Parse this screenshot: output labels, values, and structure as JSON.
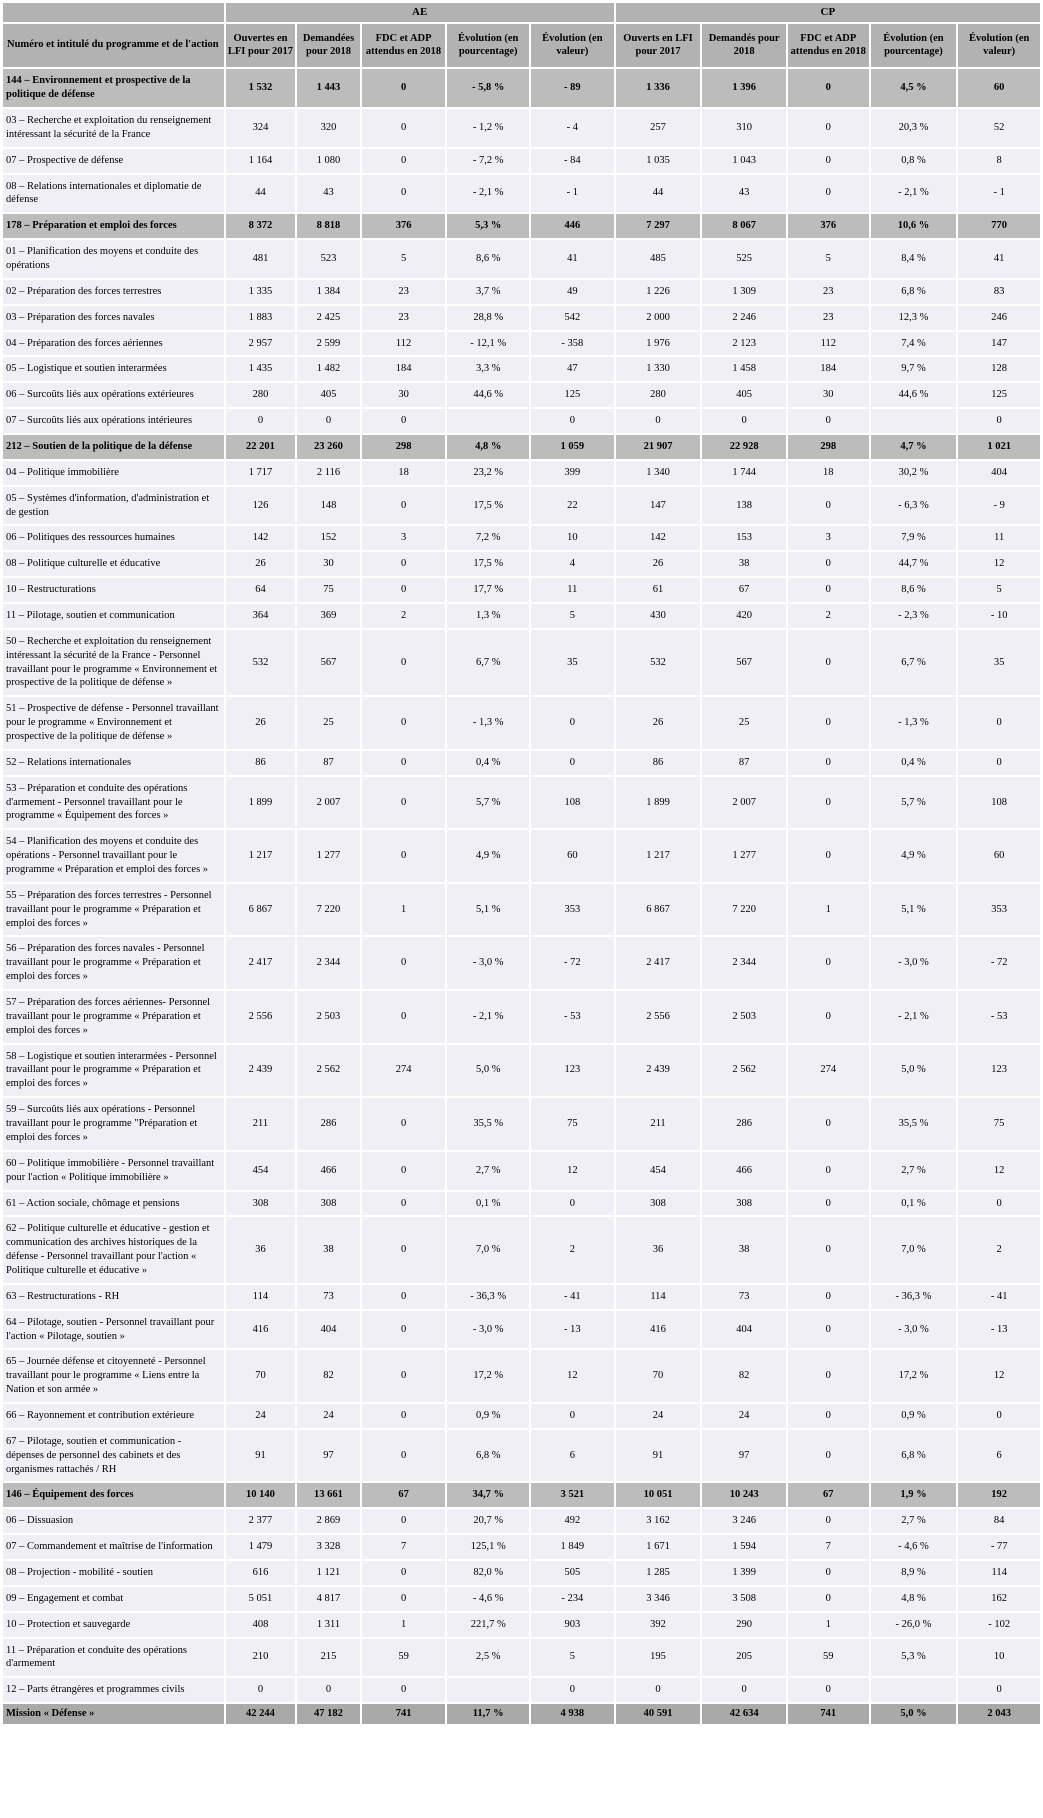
{
  "table": {
    "group_headers": {
      "ae": "AE",
      "cp": "CP"
    },
    "label_header": "Numéro et intitulé du programme et de l'action",
    "ae_columns": [
      "Ouvertes en LFI pour 2017",
      "Demandées pour 2018",
      "FDC et ADP attendus en 2018",
      "Évolution (en pourcentage)",
      "Évolution (en valeur)"
    ],
    "cp_columns": [
      "Ouverts en LFI pour 2017",
      "Demandés pour 2018",
      "FDC et ADP attendus en 2018",
      "Évolution (en pourcentage)",
      "Évolution (en valeur)"
    ],
    "colors": {
      "header_bg": "#b2b2b2",
      "program_row_bg": "#bcbcbc",
      "mission_row_bg": "#a9a9a9",
      "action_row_bg": "#f0eff5",
      "grid": "#ffffff",
      "text": "#000000"
    },
    "rows": [
      {
        "type": "program",
        "label": "144 – Environnement et prospective de la politique de défense",
        "values": [
          "1 532",
          "1 443",
          "0",
          "- 5,8 %",
          "- 89",
          "1 336",
          "1 396",
          "0",
          "4,5 %",
          "60"
        ]
      },
      {
        "type": "action",
        "label": "03 – Recherche et exploitation du renseignement intéressant la sécurité de la France",
        "values": [
          "324",
          "320",
          "0",
          "- 1,2 %",
          "- 4",
          "257",
          "310",
          "0",
          "20,3 %",
          "52"
        ]
      },
      {
        "type": "action",
        "label": "07 – Prospective de défense",
        "values": [
          "1 164",
          "1 080",
          "0",
          "- 7,2 %",
          "- 84",
          "1 035",
          "1 043",
          "0",
          "0,8 %",
          "8"
        ]
      },
      {
        "type": "action",
        "label": "08 – Relations internationales et diplomatie de défense",
        "values": [
          "44",
          "43",
          "0",
          "- 2,1 %",
          "- 1",
          "44",
          "43",
          "0",
          "- 2,1 %",
          "- 1"
        ]
      },
      {
        "type": "program",
        "label": "178 – Préparation et emploi des forces",
        "values": [
          "8 372",
          "8 818",
          "376",
          "5,3 %",
          "446",
          "7 297",
          "8 067",
          "376",
          "10,6 %",
          "770"
        ]
      },
      {
        "type": "action",
        "label": "01 – Planification des moyens et conduite des opérations",
        "values": [
          "481",
          "523",
          "5",
          "8,6 %",
          "41",
          "485",
          "525",
          "5",
          "8,4 %",
          "41"
        ]
      },
      {
        "type": "action",
        "label": "02 – Préparation des forces terrestres",
        "values": [
          "1 335",
          "1 384",
          "23",
          "3,7 %",
          "49",
          "1 226",
          "1 309",
          "23",
          "6,8 %",
          "83"
        ]
      },
      {
        "type": "action",
        "label": "03 – Préparation des forces navales",
        "values": [
          "1 883",
          "2 425",
          "23",
          "28,8 %",
          "542",
          "2 000",
          "2 246",
          "23",
          "12,3 %",
          "246"
        ]
      },
      {
        "type": "action",
        "label": "04 – Préparation des forces aériennes",
        "values": [
          "2 957",
          "2 599",
          "112",
          "- 12,1 %",
          "- 358",
          "1 976",
          "2 123",
          "112",
          "7,4 %",
          "147"
        ]
      },
      {
        "type": "action",
        "label": "05 – Logistique et soutien interarmées",
        "values": [
          "1 435",
          "1 482",
          "184",
          "3,3 %",
          "47",
          "1 330",
          "1 458",
          "184",
          "9,7 %",
          "128"
        ]
      },
      {
        "type": "action",
        "label": "06 – Surcoûts liés aux opérations extérieures",
        "values": [
          "280",
          "405",
          "30",
          "44,6 %",
          "125",
          "280",
          "405",
          "30",
          "44,6 %",
          "125"
        ]
      },
      {
        "type": "action",
        "label": "07 – Surcoûts liés aux opérations intérieures",
        "values": [
          "0",
          "0",
          "0",
          "",
          "0",
          "0",
          "0",
          "0",
          "",
          "0"
        ]
      },
      {
        "type": "program",
        "label": "212 – Soutien de la politique de la défense",
        "values": [
          "22 201",
          "23 260",
          "298",
          "4,8 %",
          "1 059",
          "21 907",
          "22 928",
          "298",
          "4,7 %",
          "1 021"
        ]
      },
      {
        "type": "action",
        "label": "04 – Politique immobilière",
        "values": [
          "1 717",
          "2 116",
          "18",
          "23,2 %",
          "399",
          "1 340",
          "1 744",
          "18",
          "30,2 %",
          "404"
        ]
      },
      {
        "type": "action",
        "label": "05 – Systèmes d'information, d'administration et de gestion",
        "values": [
          "126",
          "148",
          "0",
          "17,5 %",
          "22",
          "147",
          "138",
          "0",
          "- 6,3 %",
          "- 9"
        ]
      },
      {
        "type": "action",
        "label": "06 – Politiques des ressources humaines",
        "values": [
          "142",
          "152",
          "3",
          "7,2 %",
          "10",
          "142",
          "153",
          "3",
          "7,9 %",
          "11"
        ]
      },
      {
        "type": "action",
        "label": "08 – Politique culturelle et éducative",
        "values": [
          "26",
          "30",
          "0",
          "17,5 %",
          "4",
          "26",
          "38",
          "0",
          "44,7 %",
          "12"
        ]
      },
      {
        "type": "action",
        "label": "10 – Restructurations",
        "values": [
          "64",
          "75",
          "0",
          "17,7 %",
          "11",
          "61",
          "67",
          "0",
          "8,6 %",
          "5"
        ]
      },
      {
        "type": "action",
        "label": "11 – Pilotage, soutien et communication",
        "values": [
          "364",
          "369",
          "2",
          "1,3 %",
          "5",
          "430",
          "420",
          "2",
          "- 2,3 %",
          "- 10"
        ]
      },
      {
        "type": "action",
        "label": "50 – Recherche et exploitation du renseignement intéressant la sécurité de la France - Personnel travaillant pour le programme « Environnement et prospective de la politique de défense »",
        "values": [
          "532",
          "567",
          "0",
          "6,7 %",
          "35",
          "532",
          "567",
          "0",
          "6,7 %",
          "35"
        ]
      },
      {
        "type": "action",
        "label": "51 – Prospective de défense - Personnel travaillant pour le programme « Environnement et prospective de la politique de défense »",
        "values": [
          "26",
          "25",
          "0",
          "- 1,3 %",
          "0",
          "26",
          "25",
          "0",
          "- 1,3 %",
          "0"
        ]
      },
      {
        "type": "action",
        "label": "52 – Relations internationales",
        "values": [
          "86",
          "87",
          "0",
          "0,4 %",
          "0",
          "86",
          "87",
          "0",
          "0,4 %",
          "0"
        ]
      },
      {
        "type": "action",
        "label": "53 – Préparation et conduite des opérations d'armement - Personnel travaillant pour le programme « Équipement des forces »",
        "values": [
          "1 899",
          "2 007",
          "0",
          "5,7 %",
          "108",
          "1 899",
          "2 007",
          "0",
          "5,7 %",
          "108"
        ]
      },
      {
        "type": "action",
        "label": "54 – Planification des moyens et conduite des opérations - Personnel travaillant pour le programme « Préparation et emploi des forces »",
        "values": [
          "1 217",
          "1 277",
          "0",
          "4,9 %",
          "60",
          "1 217",
          "1 277",
          "0",
          "4,9 %",
          "60"
        ]
      },
      {
        "type": "action",
        "label": "55 – Préparation des forces terrestres - Personnel travaillant pour le programme « Préparation et emploi des forces »",
        "values": [
          "6 867",
          "7 220",
          "1",
          "5,1 %",
          "353",
          "6 867",
          "7 220",
          "1",
          "5,1 %",
          "353"
        ]
      },
      {
        "type": "action",
        "label": "56 – Préparation des forces navales - Personnel travaillant pour le programme « Préparation et emploi des forces »",
        "values": [
          "2 417",
          "2 344",
          "0",
          "- 3,0 %",
          "- 72",
          "2 417",
          "2 344",
          "0",
          "- 3,0 %",
          "- 72"
        ]
      },
      {
        "type": "action",
        "label": "57 – Préparation des forces aériennes- Personnel travaillant pour le programme « Préparation et emploi des forces »",
        "values": [
          "2 556",
          "2 503",
          "0",
          "- 2,1 %",
          "- 53",
          "2 556",
          "2 503",
          "0",
          "- 2,1 %",
          "- 53"
        ]
      },
      {
        "type": "action",
        "label": "58 – Logistique et soutien interarmées - Personnel travaillant pour le programme « Préparation et emploi des forces »",
        "values": [
          "2 439",
          "2 562",
          "274",
          "5,0 %",
          "123",
          "2 439",
          "2 562",
          "274",
          "5,0 %",
          "123"
        ]
      },
      {
        "type": "action",
        "label": "59 – Surcoûts liés aux opérations - Personnel travaillant pour le programme \"Préparation et emploi des forces »",
        "values": [
          "211",
          "286",
          "0",
          "35,5 %",
          "75",
          "211",
          "286",
          "0",
          "35,5 %",
          "75"
        ]
      },
      {
        "type": "action",
        "label": "60 – Politique immobilière - Personnel travaillant pour l'action « Politique immobilière »",
        "values": [
          "454",
          "466",
          "0",
          "2,7 %",
          "12",
          "454",
          "466",
          "0",
          "2,7 %",
          "12"
        ]
      },
      {
        "type": "action",
        "label": "61 – Action sociale, chômage et pensions",
        "values": [
          "308",
          "308",
          "0",
          "0,1 %",
          "0",
          "308",
          "308",
          "0",
          "0,1 %",
          "0"
        ]
      },
      {
        "type": "action",
        "label": "62 – Politique culturelle et éducative - gestion et communication des archives historiques de la défense - Personnel travaillant pour l'action « Politique culturelle et éducative »",
        "values": [
          "36",
          "38",
          "0",
          "7,0 %",
          "2",
          "36",
          "38",
          "0",
          "7,0 %",
          "2"
        ]
      },
      {
        "type": "action",
        "label": "63 – Restructurations - RH",
        "values": [
          "114",
          "73",
          "0",
          "- 36,3 %",
          "- 41",
          "114",
          "73",
          "0",
          "- 36,3 %",
          "- 41"
        ]
      },
      {
        "type": "action",
        "label": "64 – Pilotage, soutien - Personnel travaillant pour l'action « Pilotage, soutien »",
        "values": [
          "416",
          "404",
          "0",
          "- 3,0 %",
          "- 13",
          "416",
          "404",
          "0",
          "- 3,0 %",
          "- 13"
        ]
      },
      {
        "type": "action",
        "label": "65 – Journée défense et citoyenneté - Personnel travaillant pour le programme « Liens entre la Nation et son armée »",
        "values": [
          "70",
          "82",
          "0",
          "17,2 %",
          "12",
          "70",
          "82",
          "0",
          "17,2 %",
          "12"
        ]
      },
      {
        "type": "action",
        "label": "66 – Rayonnement et contribution extérieure",
        "values": [
          "24",
          "24",
          "0",
          "0,9 %",
          "0",
          "24",
          "24",
          "0",
          "0,9 %",
          "0"
        ]
      },
      {
        "type": "action",
        "label": "67 – Pilotage, soutien et communication - dépenses de personnel des cabinets et des organismes rattachés / RH",
        "values": [
          "91",
          "97",
          "0",
          "6,8 %",
          "6",
          "91",
          "97",
          "0",
          "6,8 %",
          "6"
        ]
      },
      {
        "type": "program",
        "label": "146 – Équipement des forces",
        "values": [
          "10 140",
          "13 661",
          "67",
          "34,7 %",
          "3 521",
          "10 051",
          "10 243",
          "67",
          "1,9 %",
          "192"
        ]
      },
      {
        "type": "action",
        "label": "06 – Dissuasion",
        "values": [
          "2 377",
          "2 869",
          "0",
          "20,7 %",
          "492",
          "3 162",
          "3 246",
          "0",
          "2,7 %",
          "84"
        ]
      },
      {
        "type": "action",
        "label": "07 – Commandement et maîtrise de l'information",
        "values": [
          "1 479",
          "3 328",
          "7",
          "125,1 %",
          "1 849",
          "1 671",
          "1 594",
          "7",
          "- 4,6 %",
          "- 77"
        ]
      },
      {
        "type": "action",
        "label": "08 – Projection - mobilité - soutien",
        "values": [
          "616",
          "1 121",
          "0",
          "82,0 %",
          "505",
          "1 285",
          "1 399",
          "0",
          "8,9 %",
          "114"
        ]
      },
      {
        "type": "action",
        "label": "09 – Engagement et combat",
        "values": [
          "5 051",
          "4 817",
          "0",
          "- 4,6 %",
          "- 234",
          "3 346",
          "3 508",
          "0",
          "4,8 %",
          "162"
        ]
      },
      {
        "type": "action",
        "label": "10 – Protection et sauvegarde",
        "values": [
          "408",
          "1 311",
          "1",
          "221,7 %",
          "903",
          "392",
          "290",
          "1",
          "- 26,0 %",
          "- 102"
        ]
      },
      {
        "type": "action",
        "label": "11 – Préparation et conduite des opérations d'armement",
        "values": [
          "210",
          "215",
          "59",
          "2,5 %",
          "5",
          "195",
          "205",
          "59",
          "5,3 %",
          "10"
        ]
      },
      {
        "type": "action",
        "label": "12 – Parts étrangères et programmes civils",
        "values": [
          "0",
          "0",
          "0",
          "",
          "0",
          "0",
          "0",
          "0",
          "",
          "0"
        ]
      },
      {
        "type": "mission",
        "label": "Mission « Défense »",
        "values": [
          "42 244",
          "47 182",
          "741",
          "11,7 %",
          "4 938",
          "40 591",
          "42 634",
          "741",
          "5,0 %",
          "2 043"
        ]
      }
    ]
  }
}
